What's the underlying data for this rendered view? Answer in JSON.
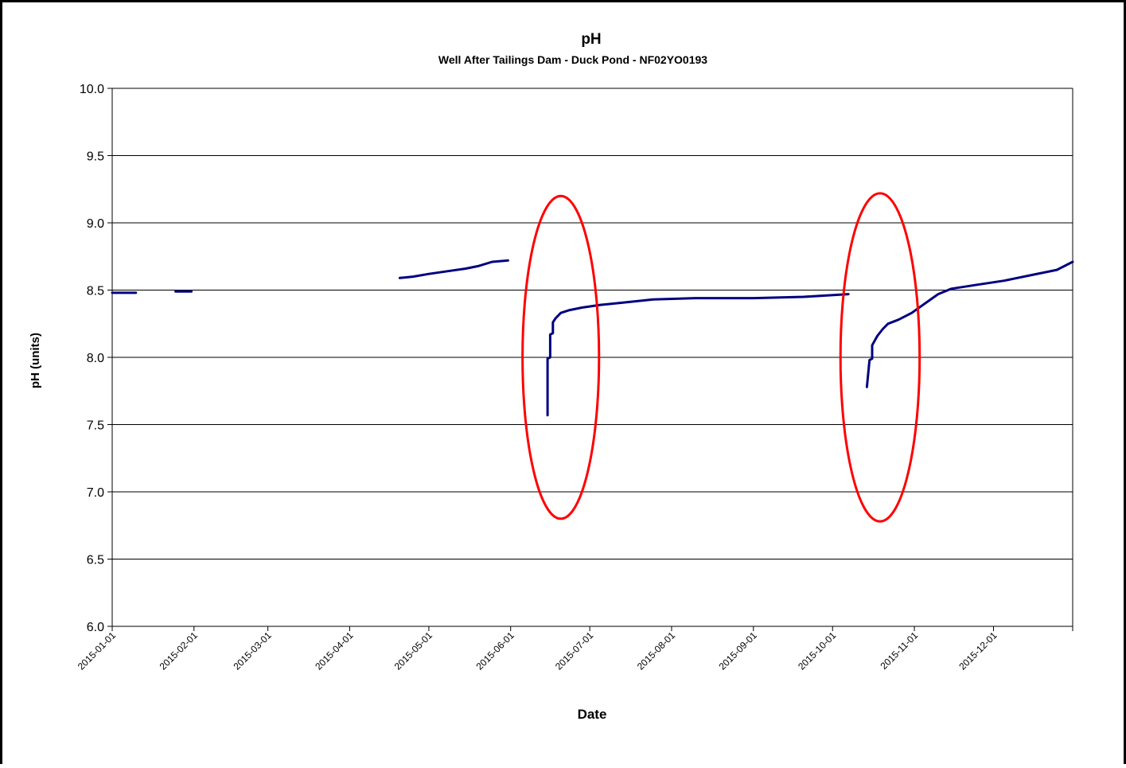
{
  "chart_data": {
    "type": "line",
    "title": "pH",
    "subtitle": "Well After Tailings Dam - Duck Pond - NF02YO0193",
    "xlabel": "Date",
    "ylabel": "pH (units)",
    "ylim": [
      6.0,
      10.0
    ],
    "xlim": [
      "2015-01-01",
      "2015-12-31"
    ],
    "y_ticks": [
      "6.0",
      "6.5",
      "7.0",
      "7.5",
      "8.0",
      "8.5",
      "9.0",
      "9.5",
      "10.0"
    ],
    "x_ticks": [
      "2015-01-01",
      "2015-02-01",
      "2015-03-01",
      "2015-04-01",
      "2015-05-01",
      "2015-06-01",
      "2015-07-01",
      "2015-08-01",
      "2015-09-01",
      "2015-10-01",
      "2015-11-01",
      "2015-12-01"
    ],
    "grid": "horizontal",
    "legend": "none",
    "series": [
      {
        "color": "#000080",
        "segments": [
          [
            [
              "2015-01-01",
              8.48
            ],
            [
              "2015-01-10",
              8.48
            ]
          ],
          [
            [
              "2015-01-25",
              8.49
            ],
            [
              "2015-01-31",
              8.49
            ]
          ],
          [
            [
              "2015-04-20",
              8.59
            ],
            [
              "2015-04-25",
              8.6
            ],
            [
              "2015-05-01",
              8.62
            ],
            [
              "2015-05-08",
              8.64
            ],
            [
              "2015-05-15",
              8.66
            ],
            [
              "2015-05-20",
              8.68
            ],
            [
              "2015-05-25",
              8.71
            ],
            [
              "2015-05-31",
              8.72
            ]
          ],
          [
            [
              "2015-06-15",
              7.57
            ],
            [
              "2015-06-15",
              7.99
            ],
            [
              "2015-06-16",
              8.0
            ],
            [
              "2015-06-16",
              8.17
            ],
            [
              "2015-06-17",
              8.18
            ],
            [
              "2015-06-17",
              8.26
            ],
            [
              "2015-06-18",
              8.29
            ],
            [
              "2015-06-20",
              8.33
            ],
            [
              "2015-06-23",
              8.35
            ],
            [
              "2015-06-28",
              8.37
            ],
            [
              "2015-07-05",
              8.39
            ],
            [
              "2015-07-15",
              8.41
            ],
            [
              "2015-07-25",
              8.43
            ],
            [
              "2015-08-10",
              8.44
            ],
            [
              "2015-09-01",
              8.44
            ],
            [
              "2015-09-20",
              8.45
            ],
            [
              "2015-10-07",
              8.47
            ]
          ],
          [
            [
              "2015-10-14",
              7.78
            ],
            [
              "2015-10-15",
              7.98
            ],
            [
              "2015-10-16",
              7.99
            ],
            [
              "2015-10-16",
              8.09
            ],
            [
              "2015-10-18",
              8.16
            ],
            [
              "2015-10-20",
              8.21
            ],
            [
              "2015-10-22",
              8.25
            ],
            [
              "2015-10-26",
              8.28
            ],
            [
              "2015-10-31",
              8.33
            ],
            [
              "2015-11-05",
              8.4
            ],
            [
              "2015-11-10",
              8.47
            ],
            [
              "2015-11-15",
              8.51
            ],
            [
              "2015-11-25",
              8.54
            ],
            [
              "2015-12-05",
              8.57
            ],
            [
              "2015-12-15",
              8.61
            ],
            [
              "2015-12-25",
              8.65
            ],
            [
              "2015-12-31",
              8.71
            ]
          ]
        ]
      }
    ],
    "annotations": [
      {
        "type": "ellipse",
        "color": "#ff0000",
        "center": [
          "2015-06-20",
          8.0
        ],
        "rx_days": 14.5,
        "ry": 1.2
      },
      {
        "type": "ellipse",
        "color": "#ff0000",
        "center": [
          "2015-10-19",
          8.0
        ],
        "rx_days": 15.0,
        "ry": 1.22
      }
    ]
  }
}
